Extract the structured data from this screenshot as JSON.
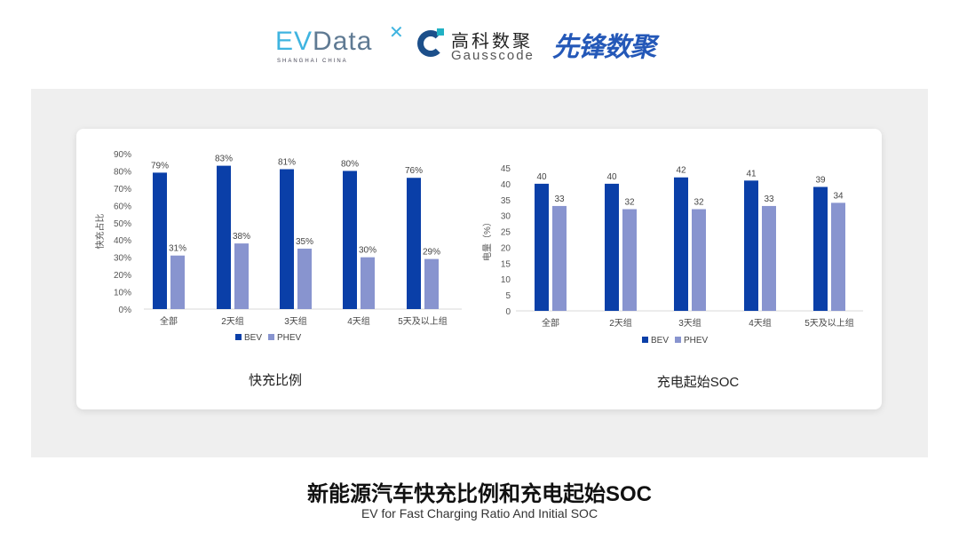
{
  "logos": {
    "evdata": {
      "ev": "EV",
      "data": "Data",
      "tagline": "SHANGHAI CHINA"
    },
    "gausscode": {
      "cn": "高科数聚",
      "en": "Gausscode"
    },
    "xianfeng": "先锋数聚"
  },
  "colors": {
    "BEV": "#0a3fa8",
    "PHEV": "#8894cf",
    "panel": "#efefef"
  },
  "chart_data": [
    {
      "type": "bar",
      "title": "快充比例",
      "ylabel": "快充占比",
      "categories": [
        "全部",
        "2天组",
        "3天组",
        "4天组",
        "5天及以上组"
      ],
      "yticks": [
        "0%",
        "10%",
        "20%",
        "30%",
        "40%",
        "50%",
        "60%",
        "70%",
        "80%",
        "90%"
      ],
      "ylim": [
        0,
        90
      ],
      "legend": "bottom",
      "series": [
        {
          "name": "BEV",
          "values": [
            79,
            83,
            81,
            80,
            76
          ],
          "labels": [
            "79%",
            "83%",
            "81%",
            "80%",
            "76%"
          ]
        },
        {
          "name": "PHEV",
          "values": [
            31,
            38,
            35,
            30,
            29
          ],
          "labels": [
            "31%",
            "38%",
            "35%",
            "30%",
            "29%"
          ]
        }
      ]
    },
    {
      "type": "bar",
      "title": "充电起始SOC",
      "ylabel": "电量（%）",
      "categories": [
        "全部",
        "2天组",
        "3天组",
        "4天组",
        "5天及以上组"
      ],
      "yticks": [
        "0",
        "5",
        "10",
        "15",
        "20",
        "25",
        "30",
        "35",
        "40",
        "45"
      ],
      "ylim": [
        0,
        45
      ],
      "legend": "bottom",
      "series": [
        {
          "name": "BEV",
          "values": [
            40,
            40,
            42,
            41,
            39
          ],
          "labels": [
            "40",
            "40",
            "42",
            "41",
            "39"
          ]
        },
        {
          "name": "PHEV",
          "values": [
            33,
            32,
            32,
            33,
            34
          ],
          "labels": [
            "33",
            "32",
            "32",
            "33",
            "34"
          ]
        }
      ]
    }
  ],
  "footer": {
    "title": "新能源汽车快充比例和充电起始SOC",
    "subtitle": "EV for Fast Charging Ratio And Initial SOC"
  }
}
